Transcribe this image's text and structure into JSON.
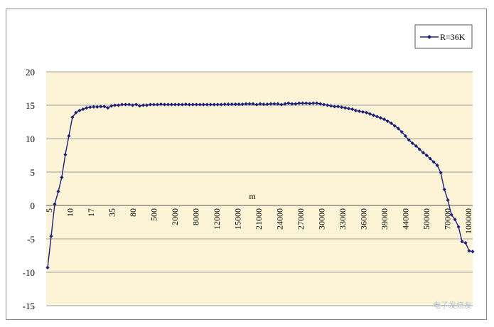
{
  "chart_data": {
    "type": "line",
    "title": "",
    "xlabel": "m",
    "ylabel": "",
    "ylim": [
      -15,
      20
    ],
    "yticks": [
      -15,
      -10,
      -5,
      0,
      5,
      10,
      15,
      20
    ],
    "grid": true,
    "legend_position": "top-right",
    "x_tick_labels": [
      "5",
      "10",
      "17",
      "35",
      "80",
      "500",
      "2000",
      "8000",
      "12000",
      "15000",
      "21000",
      "24000",
      "27000",
      "30000",
      "33000",
      "36000",
      "39000",
      "44000",
      "50000",
      "70000",
      "100000"
    ],
    "series": [
      {
        "name": "R=36K",
        "color": "#1f1f7a",
        "values": [
          -9.3,
          -4.6,
          0.2,
          2.1,
          4.2,
          7.6,
          10.4,
          13.2,
          13.9,
          14.2,
          14.4,
          14.6,
          14.7,
          14.75,
          14.75,
          14.8,
          14.8,
          14.6,
          14.9,
          15.0,
          15.0,
          15.1,
          15.1,
          15.1,
          15.0,
          15.1,
          14.9,
          15.0,
          15.0,
          15.1,
          15.1,
          15.1,
          15.15,
          15.1,
          15.1,
          15.1,
          15.1,
          15.1,
          15.1,
          15.15,
          15.1,
          15.1,
          15.1,
          15.1,
          15.1,
          15.1,
          15.1,
          15.1,
          15.1,
          15.1,
          15.15,
          15.15,
          15.15,
          15.15,
          15.15,
          15.15,
          15.2,
          15.2,
          15.2,
          15.1,
          15.2,
          15.15,
          15.15,
          15.2,
          15.2,
          15.2,
          15.1,
          15.2,
          15.3,
          15.2,
          15.2,
          15.3,
          15.3,
          15.3,
          15.25,
          15.3,
          15.3,
          15.2,
          15.1,
          15.0,
          14.9,
          14.8,
          14.8,
          14.7,
          14.6,
          14.5,
          14.4,
          14.2,
          14.1,
          14.0,
          13.9,
          13.7,
          13.5,
          13.3,
          13.1,
          12.9,
          12.6,
          12.3,
          11.9,
          11.5,
          11.0,
          10.4,
          9.8,
          9.3,
          8.9,
          8.4,
          7.9,
          7.5,
          7.0,
          6.5,
          6.0,
          4.9,
          2.4,
          0.8,
          -1.4,
          -2.1,
          -3.2,
          -5.4,
          -5.6,
          -6.8,
          -6.9
        ]
      }
    ]
  },
  "watermark_text": "电子发烧友"
}
